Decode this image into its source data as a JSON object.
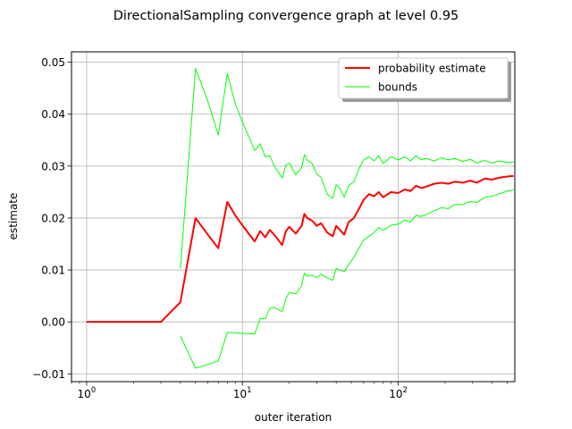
{
  "chart_data": {
    "type": "line",
    "title": "DirectionalSampling convergence graph at level 0.95",
    "xlabel": "outer iteration",
    "ylabel": "estimate",
    "xscale": "log",
    "xlim": [
      0.8,
      560
    ],
    "ylim": [
      -0.0115,
      0.052
    ],
    "x_ticks": [
      {
        "value": 1,
        "base": "10",
        "exp": "0"
      },
      {
        "value": 10,
        "base": "10",
        "exp": "1"
      },
      {
        "value": 100,
        "base": "10",
        "exp": "2"
      }
    ],
    "y_ticks": [
      -0.01,
      0.0,
      0.01,
      0.02,
      0.03,
      0.04,
      0.05
    ],
    "y_tick_labels": [
      "−0.01",
      "0.00",
      "0.01",
      "0.02",
      "0.03",
      "0.04",
      "0.05"
    ],
    "grid": true,
    "legend": {
      "position": "top-right"
    },
    "series": [
      {
        "name": "probability estimate",
        "color": "#ff0000",
        "stroke_width": 2,
        "points": [
          [
            1,
            0.0
          ],
          [
            2,
            0.0
          ],
          [
            3,
            0.0
          ],
          [
            4,
            0.0038
          ],
          [
            5,
            0.02
          ],
          [
            6,
            0.0168
          ],
          [
            7,
            0.0142
          ],
          [
            8,
            0.0231
          ],
          [
            9,
            0.0205
          ],
          [
            10,
            0.0186
          ],
          [
            12,
            0.0155
          ],
          [
            13,
            0.0175
          ],
          [
            14,
            0.0163
          ],
          [
            15,
            0.0177
          ],
          [
            16,
            0.0168
          ],
          [
            18,
            0.0148
          ],
          [
            19,
            0.0175
          ],
          [
            20,
            0.0183
          ],
          [
            22,
            0.017
          ],
          [
            24,
            0.0185
          ],
          [
            25,
            0.0208
          ],
          [
            26,
            0.02
          ],
          [
            28,
            0.0195
          ],
          [
            30,
            0.0185
          ],
          [
            32,
            0.019
          ],
          [
            35,
            0.0172
          ],
          [
            38,
            0.0165
          ],
          [
            40,
            0.0185
          ],
          [
            42,
            0.0178
          ],
          [
            45,
            0.0168
          ],
          [
            48,
            0.0192
          ],
          [
            52,
            0.02
          ],
          [
            56,
            0.0218
          ],
          [
            60,
            0.0235
          ],
          [
            65,
            0.0246
          ],
          [
            70,
            0.0242
          ],
          [
            75,
            0.025
          ],
          [
            80,
            0.024
          ],
          [
            90,
            0.025
          ],
          [
            100,
            0.0248
          ],
          [
            110,
            0.0255
          ],
          [
            120,
            0.0252
          ],
          [
            130,
            0.0262
          ],
          [
            140,
            0.0258
          ],
          [
            150,
            0.026
          ],
          [
            170,
            0.0266
          ],
          [
            190,
            0.0268
          ],
          [
            210,
            0.0266
          ],
          [
            230,
            0.027
          ],
          [
            260,
            0.0268
          ],
          [
            290,
            0.0272
          ],
          [
            320,
            0.0268
          ],
          [
            360,
            0.0276
          ],
          [
            400,
            0.0274
          ],
          [
            450,
            0.0278
          ],
          [
            500,
            0.028
          ],
          [
            550,
            0.0281
          ]
        ]
      },
      {
        "name": "bounds",
        "color": "#00ff00",
        "stroke_width": 1,
        "points": [
          [
            4,
            0.0103
          ],
          [
            5,
            0.0488
          ],
          [
            6,
            0.0425
          ],
          [
            7,
            0.036
          ],
          [
            8,
            0.0478
          ],
          [
            9,
            0.042
          ],
          [
            10,
            0.0385
          ],
          [
            12,
            0.033
          ],
          [
            13,
            0.0343
          ],
          [
            14,
            0.0318
          ],
          [
            15,
            0.032
          ],
          [
            16,
            0.03
          ],
          [
            18,
            0.0277
          ],
          [
            19,
            0.0302
          ],
          [
            20,
            0.0306
          ],
          [
            22,
            0.0283
          ],
          [
            24,
            0.0297
          ],
          [
            25,
            0.0322
          ],
          [
            26,
            0.0312
          ],
          [
            28,
            0.0305
          ],
          [
            30,
            0.0285
          ],
          [
            32,
            0.0278
          ],
          [
            35,
            0.0246
          ],
          [
            38,
            0.0238
          ],
          [
            40,
            0.0264
          ],
          [
            42,
            0.0258
          ],
          [
            45,
            0.024
          ],
          [
            48,
            0.0262
          ],
          [
            52,
            0.027
          ],
          [
            56,
            0.0295
          ],
          [
            60,
            0.0312
          ],
          [
            65,
            0.0318
          ],
          [
            70,
            0.031
          ],
          [
            75,
            0.032
          ],
          [
            80,
            0.0305
          ],
          [
            90,
            0.0318
          ],
          [
            100,
            0.0312
          ],
          [
            110,
            0.0318
          ],
          [
            120,
            0.031
          ],
          [
            130,
            0.032
          ],
          [
            140,
            0.0312
          ],
          [
            150,
            0.0315
          ],
          [
            170,
            0.031
          ],
          [
            190,
            0.0316
          ],
          [
            210,
            0.0312
          ],
          [
            230,
            0.0315
          ],
          [
            260,
            0.0309
          ],
          [
            290,
            0.0313
          ],
          [
            320,
            0.0306
          ],
          [
            360,
            0.0311
          ],
          [
            400,
            0.0306
          ],
          [
            450,
            0.031
          ],
          [
            500,
            0.0307
          ],
          [
            550,
            0.0308
          ]
        ],
        "lower_points": [
          [
            4,
            -0.0027
          ],
          [
            5,
            -0.0089
          ],
          [
            6,
            -0.0082
          ],
          [
            7,
            -0.0075
          ],
          [
            8,
            -0.002
          ],
          [
            9,
            -0.0021
          ],
          [
            10,
            -0.0022
          ],
          [
            12,
            -0.0023
          ],
          [
            13,
            0.0007
          ],
          [
            14,
            0.0006
          ],
          [
            15,
            0.0026
          ],
          [
            16,
            0.0028
          ],
          [
            18,
            0.002
          ],
          [
            19,
            0.0044
          ],
          [
            20,
            0.0057
          ],
          [
            22,
            0.0054
          ],
          [
            24,
            0.007
          ],
          [
            25,
            0.0094
          ],
          [
            26,
            0.0088
          ],
          [
            28,
            0.009
          ],
          [
            30,
            0.0085
          ],
          [
            32,
            0.0092
          ],
          [
            35,
            0.0085
          ],
          [
            38,
            0.008
          ],
          [
            40,
            0.0103
          ],
          [
            42,
            0.01
          ],
          [
            45,
            0.0097
          ],
          [
            48,
            0.011
          ],
          [
            52,
            0.0125
          ],
          [
            56,
            0.0142
          ],
          [
            60,
            0.0158
          ],
          [
            65,
            0.0165
          ],
          [
            70,
            0.0172
          ],
          [
            75,
            0.0182
          ],
          [
            80,
            0.0176
          ],
          [
            90,
            0.0186
          ],
          [
            100,
            0.0188
          ],
          [
            110,
            0.0196
          ],
          [
            120,
            0.0192
          ],
          [
            130,
            0.0205
          ],
          [
            140,
            0.0203
          ],
          [
            150,
            0.0206
          ],
          [
            170,
            0.0214
          ],
          [
            190,
            0.022
          ],
          [
            210,
            0.0218
          ],
          [
            230,
            0.0226
          ],
          [
            260,
            0.0226
          ],
          [
            290,
            0.0232
          ],
          [
            320,
            0.023
          ],
          [
            360,
            0.024
          ],
          [
            400,
            0.0242
          ],
          [
            450,
            0.0247
          ],
          [
            500,
            0.0252
          ],
          [
            550,
            0.0254
          ]
        ]
      }
    ]
  }
}
